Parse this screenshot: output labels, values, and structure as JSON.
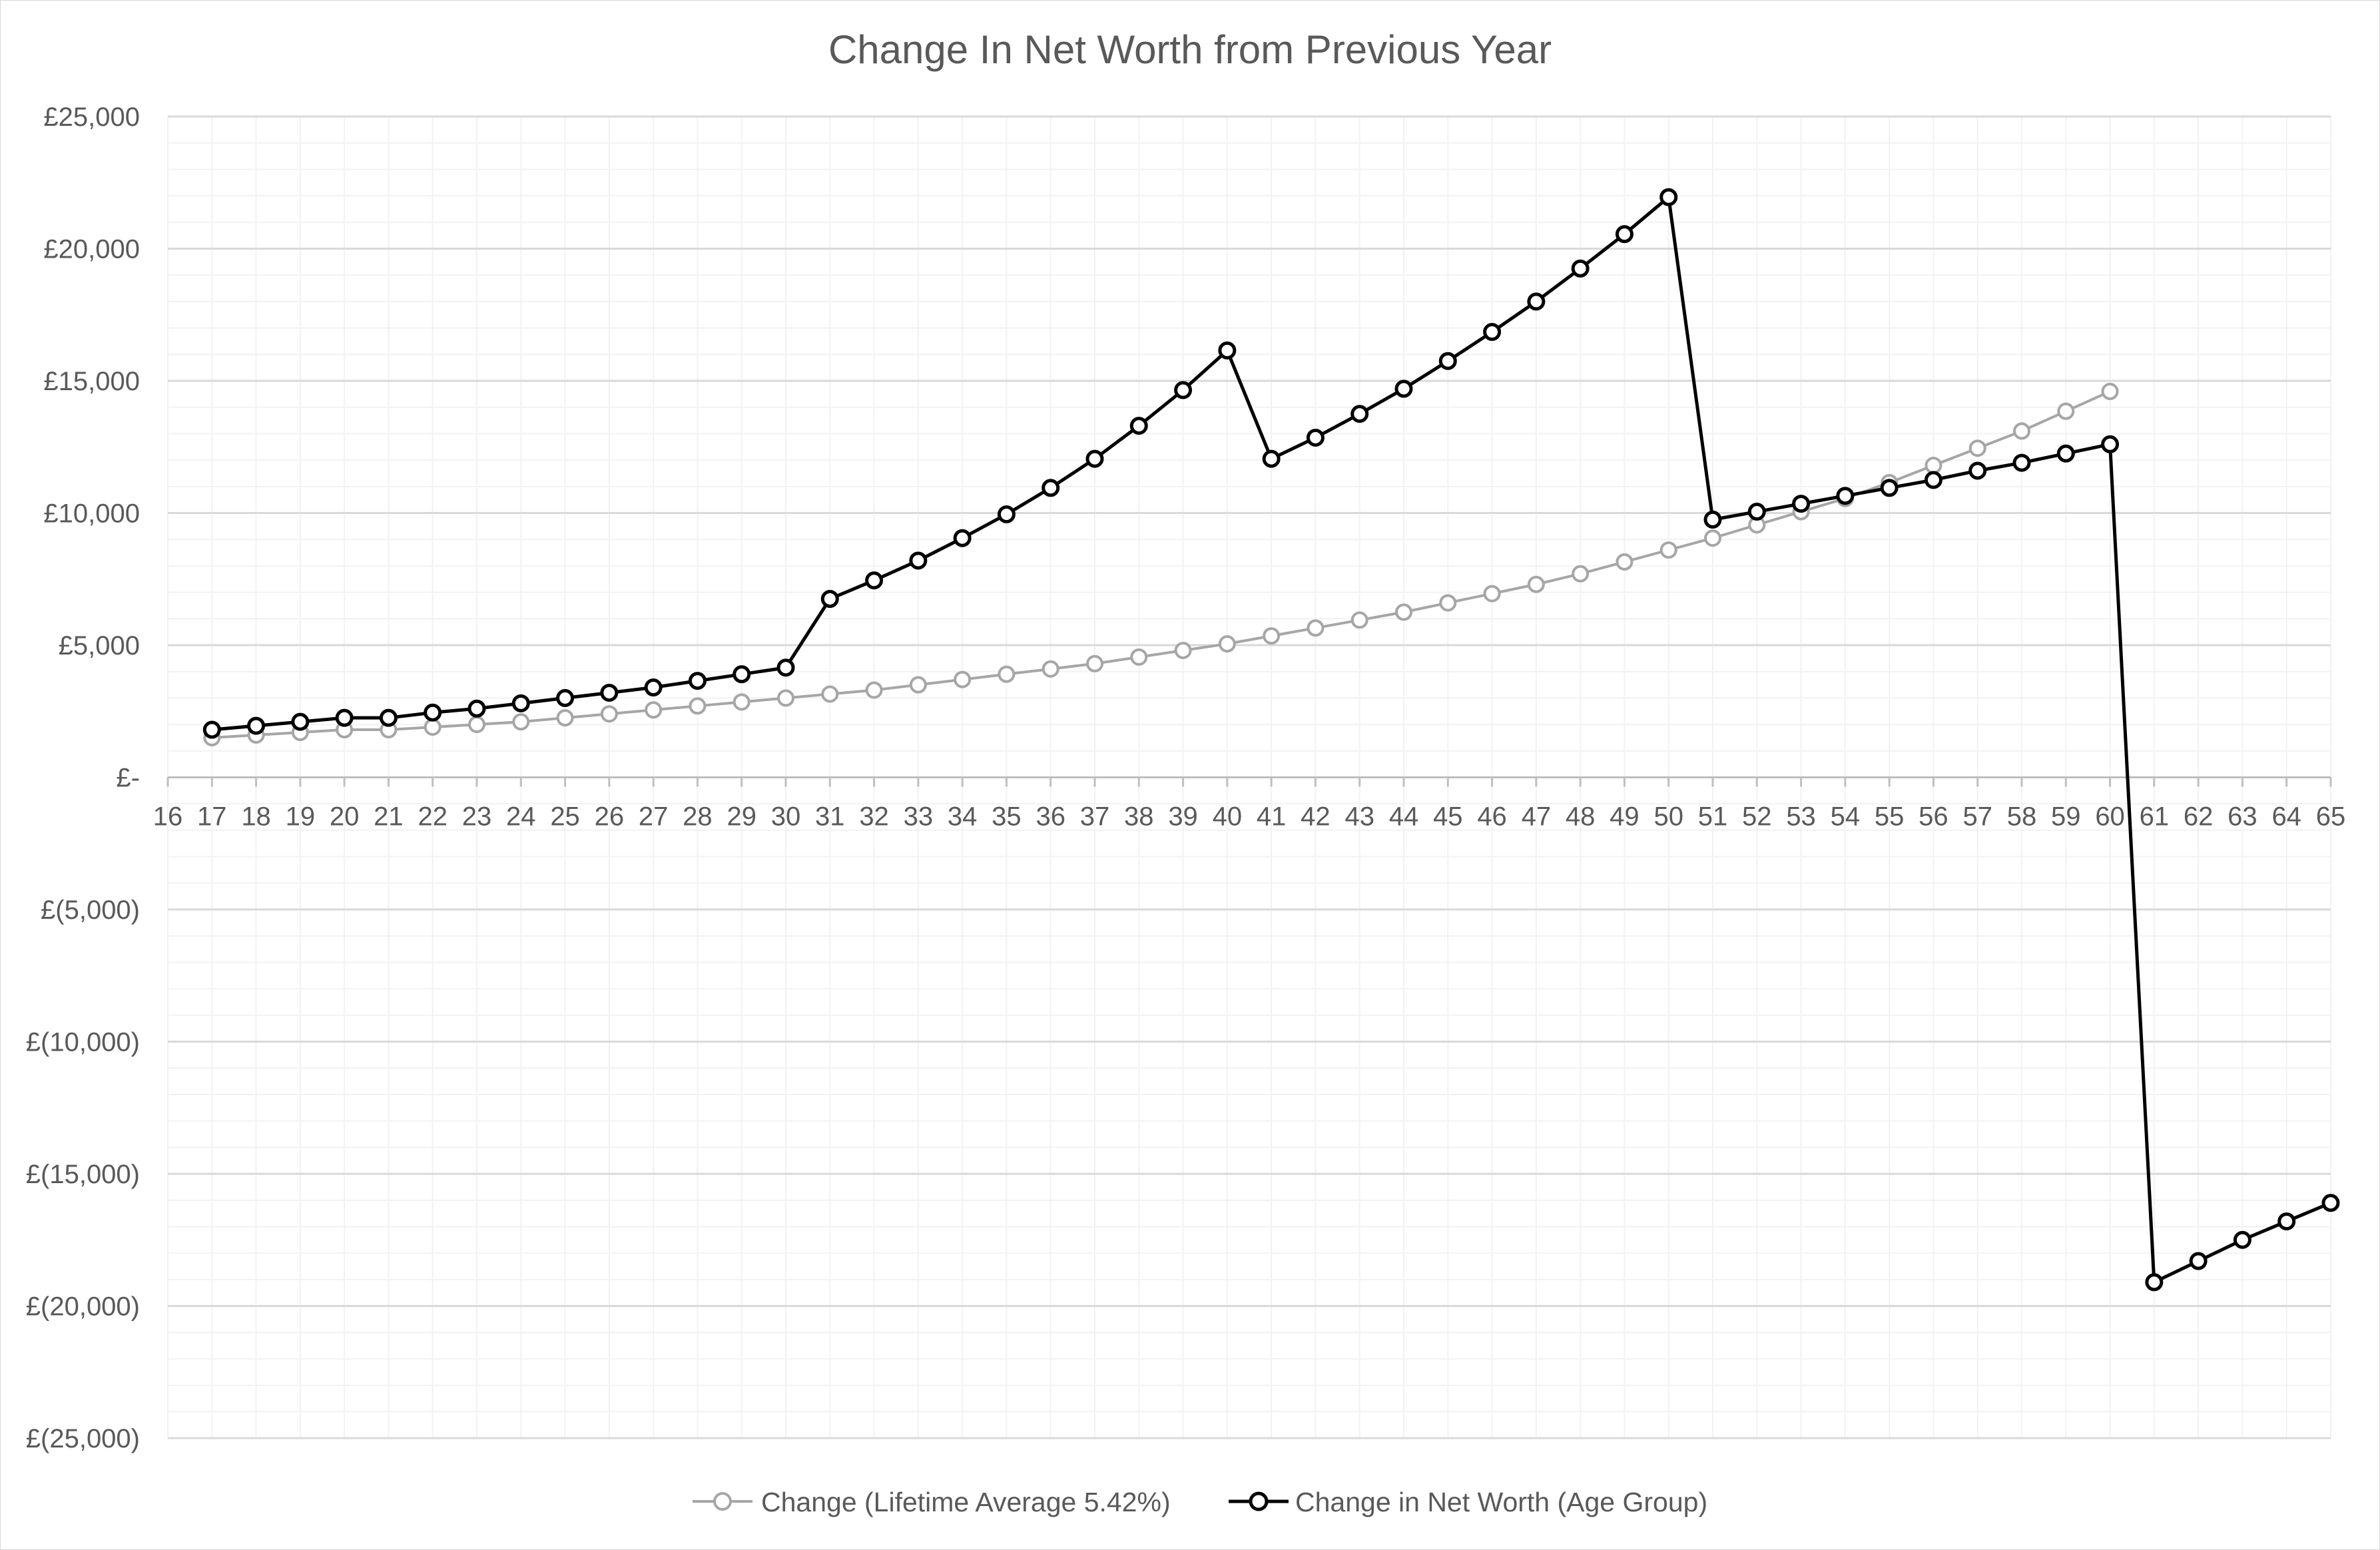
{
  "chart_data": {
    "type": "line",
    "title": "Change In Net Worth from Previous Year",
    "xlabel": "",
    "ylabel": "",
    "x_ticks": [
      "16",
      "17",
      "18",
      "19",
      "20",
      "21",
      "22",
      "23",
      "24",
      "25",
      "26",
      "27",
      "28",
      "29",
      "30",
      "31",
      "32",
      "33",
      "34",
      "35",
      "36",
      "37",
      "38",
      "39",
      "40",
      "41",
      "42",
      "43",
      "44",
      "45",
      "46",
      "47",
      "48",
      "49",
      "50",
      "51",
      "52",
      "53",
      "54",
      "55",
      "56",
      "57",
      "58",
      "59",
      "60",
      "61",
      "62",
      "63",
      "64",
      "65"
    ],
    "y_ticks": [
      25000,
      20000,
      15000,
      10000,
      5000,
      0,
      -5000,
      -10000,
      -15000,
      -20000,
      -25000
    ],
    "y_tick_labels": [
      "£25,000",
      "£20,000",
      "£15,000",
      "£10,000",
      "£5,000",
      "£-",
      "£(5,000)",
      "£(10,000)",
      "£(15,000)",
      "£(20,000)",
      "£(25,000)"
    ],
    "xlim": [
      16,
      65
    ],
    "ylim": [
      -25000,
      25000
    ],
    "grid": true,
    "legend_position": "bottom",
    "series": [
      {
        "name": "Change (Lifetime Average 5.42%)",
        "color": "#a6a6a6",
        "x": [
          17,
          18,
          19,
          20,
          21,
          22,
          23,
          24,
          25,
          26,
          27,
          28,
          29,
          30,
          31,
          32,
          33,
          34,
          35,
          36,
          37,
          38,
          39,
          40,
          41,
          42,
          43,
          44,
          45,
          46,
          47,
          48,
          49,
          50,
          51,
          52,
          53,
          54,
          55,
          56,
          57,
          58,
          59,
          60
        ],
        "y": [
          1500,
          1600,
          1700,
          1800,
          1800,
          1900,
          2000,
          2100,
          2250,
          2400,
          2550,
          2700,
          2850,
          3000,
          3150,
          3300,
          3500,
          3700,
          3900,
          4100,
          4300,
          4550,
          4800,
          5050,
          5350,
          5650,
          5950,
          6250,
          6600,
          6950,
          7300,
          7700,
          8150,
          8600,
          9050,
          9550,
          10050,
          10550,
          11150,
          11800,
          12450,
          13100,
          13850,
          14600
        ]
      },
      {
        "name": "Change in Net Worth (Age Group)",
        "color": "#000000",
        "x": [
          17,
          18,
          19,
          20,
          21,
          22,
          23,
          24,
          25,
          26,
          27,
          28,
          29,
          30,
          31,
          32,
          33,
          34,
          35,
          36,
          37,
          38,
          39,
          40,
          41,
          42,
          43,
          44,
          45,
          46,
          47,
          48,
          49,
          50,
          51,
          52,
          53,
          54,
          55,
          56,
          57,
          58,
          59,
          60,
          61,
          62,
          63,
          64,
          65
        ],
        "y": [
          1800,
          1950,
          2100,
          2250,
          2250,
          2450,
          2600,
          2800,
          3000,
          3200,
          3400,
          3650,
          3900,
          4150,
          6750,
          7450,
          8200,
          9050,
          9950,
          10950,
          12050,
          13300,
          14650,
          16150,
          12050,
          12850,
          13750,
          14700,
          15750,
          16850,
          18000,
          19250,
          20550,
          21950,
          9750,
          10050,
          10350,
          10650,
          10950,
          11250,
          11600,
          11900,
          12250,
          12600,
          -19100,
          -18300,
          -17500,
          -16800,
          -16100
        ]
      }
    ]
  }
}
